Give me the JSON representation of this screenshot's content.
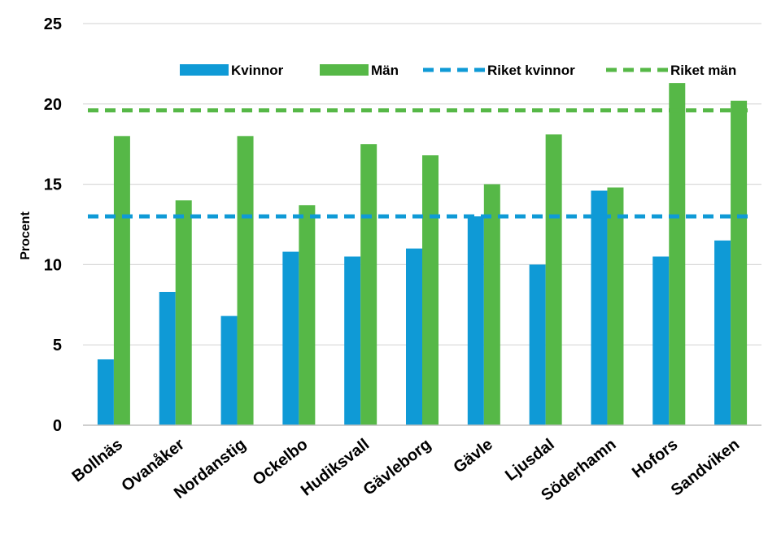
{
  "chart_data": {
    "type": "bar",
    "title": "",
    "xlabel": "",
    "ylabel": "Procent",
    "ylim": [
      0,
      25
    ],
    "yticks": [
      0,
      5,
      10,
      15,
      20,
      25
    ],
    "grid": true,
    "legend_position": "top",
    "categories": [
      "Bollnäs",
      "Ovanåker",
      "Nordanstig",
      "Ockelbo",
      "Hudiksvall",
      "Gävleborg",
      "Gävle",
      "Ljusdal",
      "Söderhamn",
      "Hofors",
      "Sandviken"
    ],
    "series": [
      {
        "name": "Kvinnor",
        "color": "#0f9ad6",
        "values": [
          4.1,
          8.3,
          6.8,
          10.8,
          10.5,
          11.0,
          13.0,
          10.0,
          14.6,
          10.5,
          11.5
        ]
      },
      {
        "name": "Män",
        "color": "#56b847",
        "values": [
          18.0,
          14.0,
          18.0,
          13.7,
          17.5,
          16.8,
          15.0,
          18.1,
          14.8,
          21.3,
          20.2
        ]
      }
    ],
    "reference_lines": [
      {
        "name": "Riket kvinnor",
        "color": "#0f9ad6",
        "value": 13.0,
        "style": "dashed"
      },
      {
        "name": "Riket män",
        "color": "#56b847",
        "value": 19.6,
        "style": "dashed"
      }
    ]
  }
}
